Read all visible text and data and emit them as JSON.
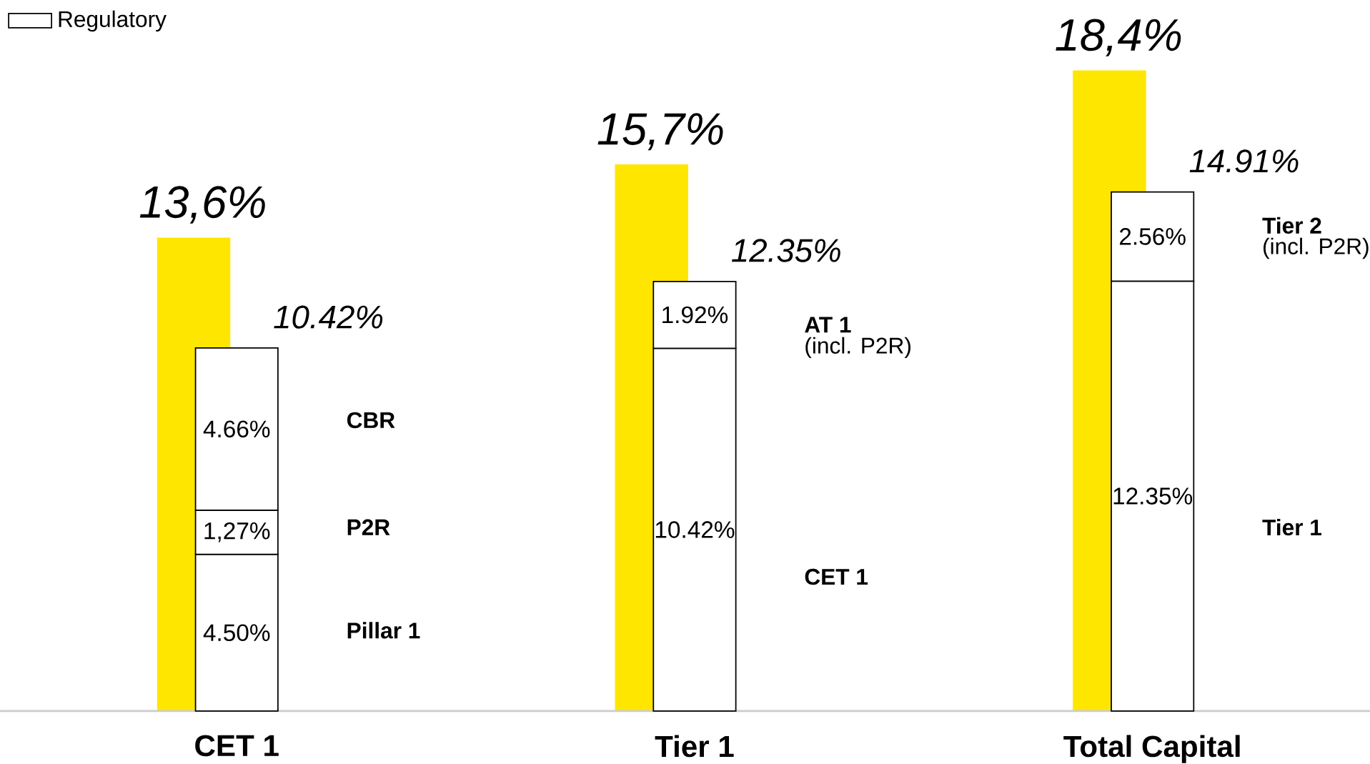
{
  "chart_data": [
    {
      "type": "bar",
      "tick_labels": false,
      "series": [
        {
          "color": "#ffe600",
          "values": [
            13.6,
            15.7,
            18.4
          ],
          "value_labels": [
            "13,6%",
            "15,7%",
            "18,4%"
          ]
        }
      ]
    },
    {
      "type": "bar",
      "stacked": true,
      "categories": [
        "CET 1",
        "Tier 1",
        "Total Capital"
      ],
      "series": [
        {
          "name": "Regulatory",
          "color": "#ffffff",
          "values": [
            4.5,
            10.42,
            12.35
          ],
          "value_labels": [
            "4.50%",
            "10.42%",
            "12.35%"
          ]
        },
        {
          "color": "#ffffff",
          "values": [
            1.27,
            1.92,
            2.56
          ],
          "value_labels": [
            "1,27%",
            "1.92%",
            "2.56%"
          ]
        },
        {
          "color": "#ffffff",
          "values": [
            4.66,
            null,
            null
          ],
          "value_labels": [
            "4.66%",
            null,
            null
          ]
        }
      ],
      "totals": [
        "10.42%",
        "12.35%",
        "14.91%"
      ],
      "annotations": [
        "**CBR**",
        "**P2R**",
        "**Pillar 1**",
        "**AT 1**",
        "(incl. P2R)",
        "**CET 1**",
        "**Tier 2**",
        "(incl. P2R)",
        "**Tier 1**"
      ],
      "legend": "top left"
    }
  ]
}
